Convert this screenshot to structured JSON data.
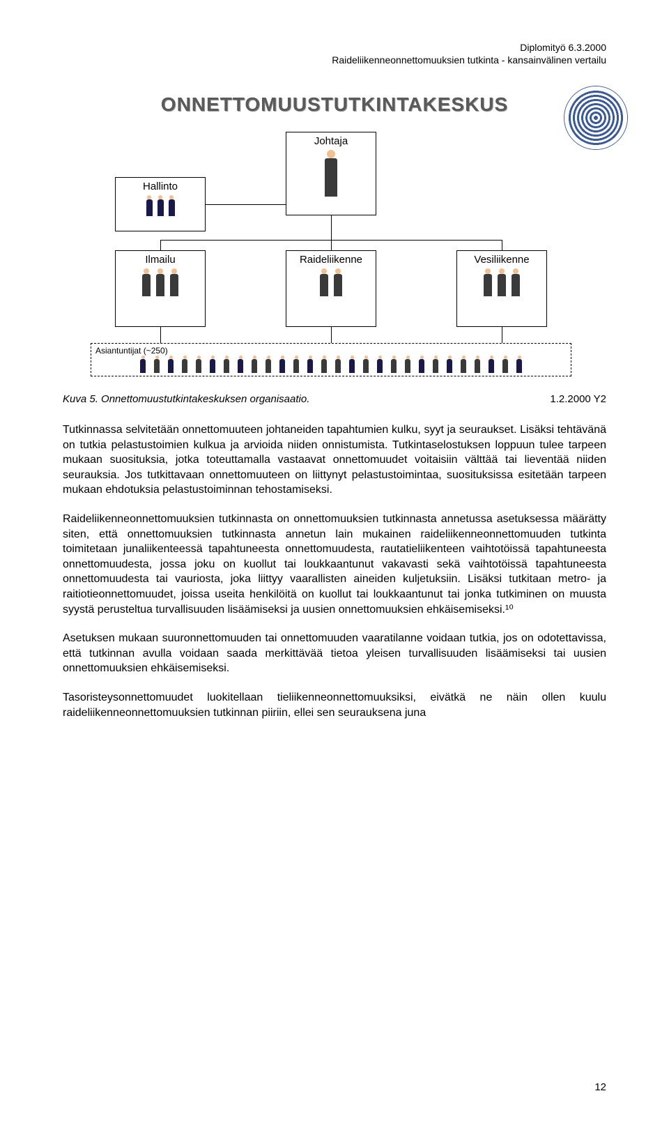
{
  "header": {
    "line1": "Diplomityö 6.3.2000",
    "line2": "Raideliikenneonnettomuuksien tutkinta - kansainvälinen vertailu"
  },
  "diagram": {
    "title": "ONNETTOMUUSTUTKINTAKESKUS",
    "johtaja": "Johtaja",
    "hallinto": "Hallinto",
    "ilmailu": "Ilmailu",
    "raideliikenne": "Raideliikenne",
    "vesiliikenne": "Vesiliikenne",
    "asiantuntijat": "Asiantuntijat   (~250)"
  },
  "figure": {
    "label": "Kuva 5.   Onnettomuustutkintakeskuksen organisaatio.",
    "code": "1.2.2000 Y2"
  },
  "paragraphs": {
    "p1": "Tutkinnassa selvitetään onnettomuuteen johtaneiden tapahtumien kulku, syyt ja seuraukset. Lisäksi tehtävänä on tutkia pelastustoimien kulkua ja arvioida niiden onnistumista. Tutkintaselostuksen loppuun tulee tarpeen mukaan suosituksia, jotka toteuttamalla vastaavat onnettomuudet voitaisiin välttää tai lieventää niiden seurauksia. Jos tutkittavaan onnettomuuteen on liittynyt pelastustoimintaa, suosituksissa esitetään tarpeen mukaan ehdotuksia pelastustoiminnan tehostamiseksi.",
    "p2": "Raideliikenneonnettomuuksien tutkinnasta on onnettomuuksien tutkinnasta annetussa asetuksessa määrätty siten, että onnettomuuksien tutkinnasta annetun lain mukainen raideliikenneonnettomuuden tutkinta toimitetaan junaliikenteessä tapahtuneesta onnettomuudesta, rautatieliikenteen vaihtotöissä tapahtuneesta onnettomuudesta, jossa joku on kuollut tai loukkaantunut vakavasti sekä vaihtotöissä tapahtuneesta onnettomuudesta tai vauriosta, joka liittyy vaarallisten aineiden kuljetuksiin. Lisäksi tutkitaan metro- ja raitiotieonnettomuudet, joissa useita henkilöitä on kuollut tai loukkaantunut tai jonka tutkiminen on muusta syystä perusteltua turvallisuuden lisäämiseksi ja uusien onnettomuuksien ehkäisemiseksi.¹⁰",
    "p3": "Asetuksen mukaan suuronnettomuuden tai onnettomuuden vaaratilanne voidaan tutkia, jos on odotettavissa, että tutkinnan avulla voidaan saada merkittävää tietoa yleisen turvallisuuden lisäämiseksi tai uusien onnettomuuksien ehkäisemiseksi.",
    "p4": "Tasoristeysonnettomuudet luokitellaan tieliikenneonnettomuuksiksi, eivätkä ne näin ollen kuulu raideliikenneonnettomuuksien tutkinnan piiriin, ellei sen seurauksena juna"
  },
  "page_number": "12",
  "colors": {
    "text": "#000000",
    "background": "#ffffff",
    "title_shadow": "#999999",
    "logo_primary": "#3a5a9a"
  },
  "fonts": {
    "body_size_pt": 12,
    "header_size_pt": 10,
    "diagram_title_size_pt": 20,
    "diagram_title_weight": "bold"
  }
}
